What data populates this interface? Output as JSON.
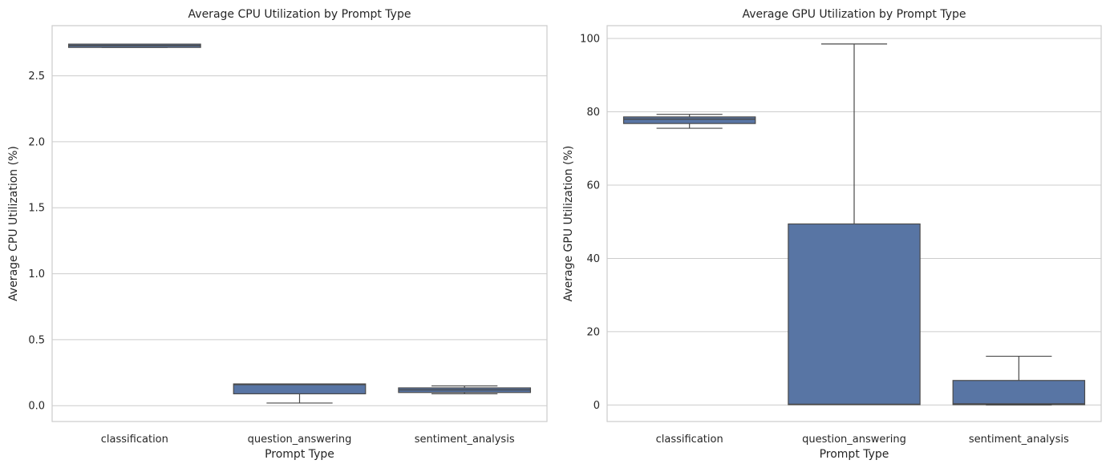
{
  "chart_data": [
    {
      "type": "box",
      "title": "Average CPU Utilization by Prompt Type",
      "xlabel": "Prompt Type",
      "ylabel": "Average CPU Utilization (%)",
      "categories": [
        "classification",
        "question_answering",
        "sentiment_analysis"
      ],
      "ylim": [
        -0.12,
        2.88
      ],
      "yticks": [
        0.0,
        0.5,
        1.0,
        1.5,
        2.0,
        2.5
      ],
      "ytick_labels": [
        "0.0",
        "0.5",
        "1.0",
        "1.5",
        "2.0",
        "2.5"
      ],
      "grid": true,
      "boxes": [
        {
          "category": "classification",
          "whisker_low": 2.715,
          "q1": 2.715,
          "median": 2.73,
          "q3": 2.74,
          "whisker_high": 2.74
        },
        {
          "category": "question_answering",
          "whisker_low": 0.02,
          "q1": 0.09,
          "median": 0.16,
          "q3": 0.165,
          "whisker_high": 0.165
        },
        {
          "category": "sentiment_analysis",
          "whisker_low": 0.09,
          "q1": 0.1,
          "median": 0.12,
          "q3": 0.135,
          "whisker_high": 0.15
        }
      ],
      "color": "#5875a4"
    },
    {
      "type": "box",
      "title": "Average GPU Utilization by Prompt Type",
      "xlabel": "Prompt Type",
      "ylabel": "Average GPU Utilization (%)",
      "categories": [
        "classification",
        "question_answering",
        "sentiment_analysis"
      ],
      "ylim": [
        -4.5,
        103.5
      ],
      "yticks": [
        0,
        20,
        40,
        60,
        80,
        100
      ],
      "ytick_labels": [
        "0",
        "20",
        "40",
        "60",
        "80",
        "100"
      ],
      "grid": true,
      "boxes": [
        {
          "category": "classification",
          "whisker_low": 75.5,
          "q1": 76.8,
          "median": 78.0,
          "q3": 78.6,
          "whisker_high": 79.3
        },
        {
          "category": "question_answering",
          "whisker_low": 0.1,
          "q1": 0.1,
          "median": 0.2,
          "q3": 49.4,
          "whisker_high": 98.5
        },
        {
          "category": "sentiment_analysis",
          "whisker_low": 0.0,
          "q1": 0.1,
          "median": 0.3,
          "q3": 6.7,
          "whisker_high": 13.3
        }
      ],
      "color": "#5875a4"
    }
  ]
}
